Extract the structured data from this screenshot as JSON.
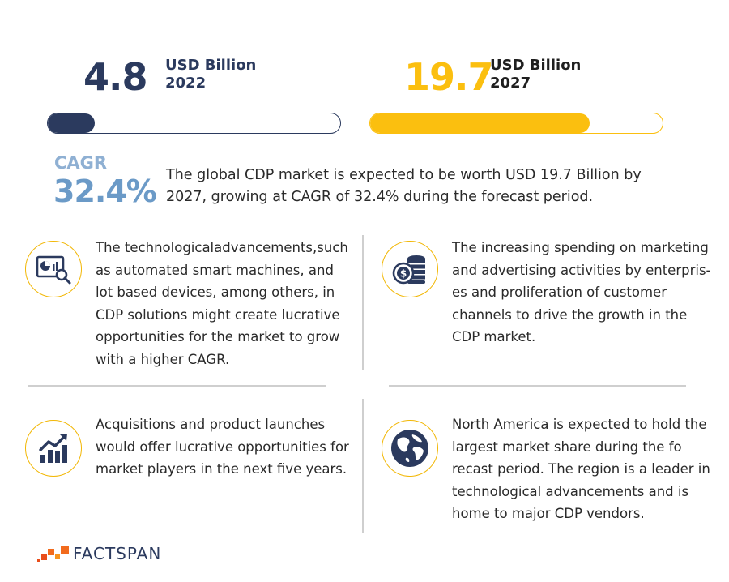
{
  "chart_data": {
    "type": "bar",
    "categories": [
      "2022",
      "2027"
    ],
    "values": [
      4.8,
      19.7
    ],
    "unit": "USD Billion",
    "cagr": "32.4%",
    "colors": {
      "2022": "#2b3a5e",
      "2027": "#fbbf0f"
    }
  },
  "stats": {
    "left": {
      "value": "4.8",
      "unit": "USD Billion",
      "year": "2022",
      "fill": 0.16,
      "color": "#2b3a5e"
    },
    "right": {
      "value": "19.7",
      "unit": "USD Billion",
      "year": "2027",
      "fill": 0.75,
      "color": "#fbbf0f"
    }
  },
  "cagr": {
    "label": "CAGR",
    "value": "32.4%"
  },
  "summary": {
    "line1": "The global CDP market is expected to be worth USD 19.7 Billion by",
    "line2": "2027, growing at CAGR of 32.4% during the forecast period."
  },
  "cards": [
    {
      "icon": "analytics-search-icon",
      "lines": [
        "The technologicaladvancements,such",
        "as automated smart machines, and",
        "lot based devices, among others, in",
        "CDP solutions might create lucrative",
        "opportunities for the market to grow",
        "with a higher CAGR."
      ]
    },
    {
      "icon": "coin-stack-icon",
      "lines": [
        "The increasing spending on marketing",
        "and advertising activities by enterpris-",
        "es and proliferation of customer",
        "channels to drive the growth in the",
        "CDP market."
      ]
    },
    {
      "icon": "growth-chart-icon",
      "lines": [
        "Acquisitions and product launches",
        "would offer lucrative opportunities for",
        "market players in the next five years."
      ]
    },
    {
      "icon": "globe-icon",
      "lines": [
        "North America is expected to hold the",
        "largest market share during the fo",
        "recast period. The region is a leader in",
        "technological advancements and is",
        "home to major CDP vendors."
      ]
    }
  ],
  "brand": {
    "name": "FACTSPAN",
    "colors": [
      "#f26b1d",
      "#f7941d",
      "#e94e1b"
    ]
  }
}
